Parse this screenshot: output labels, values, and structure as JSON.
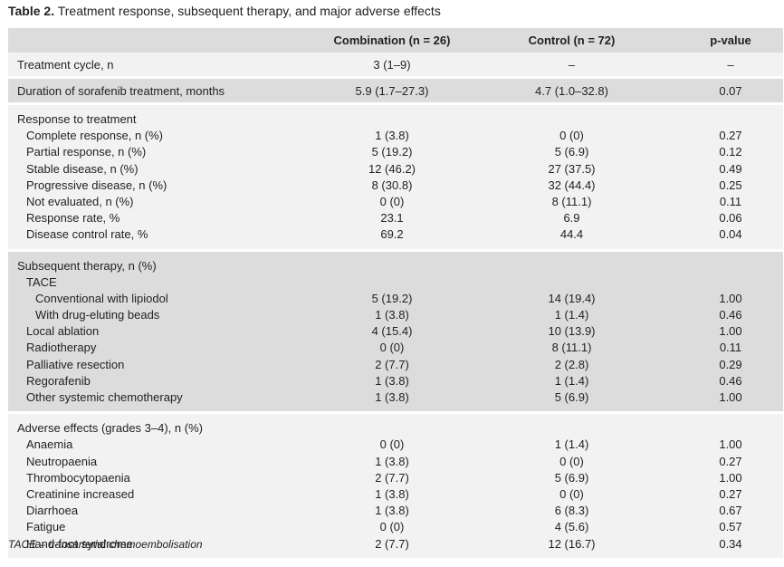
{
  "caption": {
    "label": "Table 2.",
    "text": " Treatment response, subsequent therapy, and major adverse effects"
  },
  "columns": {
    "combination": "Combination (n = 26)",
    "control": "Control (n = 72)",
    "pvalue": "p-value"
  },
  "rows_single": [
    {
      "label": "Treatment cycle, n",
      "combination": "3 (1–9)",
      "control": "–",
      "p": "–"
    },
    {
      "label": "Duration of sorafenib treatment, months",
      "combination": "5.9 (1.7–27.3)",
      "control": "4.7 (1.0–32.8)",
      "p": "0.07"
    }
  ],
  "response": {
    "header": "Response to treatment",
    "rows": [
      {
        "label": "Complete response, n (%)",
        "combination": "1 (3.8)",
        "control": "0 (0)",
        "p": "0.27"
      },
      {
        "label": "Partial response, n (%)",
        "combination": "5 (19.2)",
        "control": "5 (6.9)",
        "p": "0.12"
      },
      {
        "label": "Stable disease, n (%)",
        "combination": "12 (46.2)",
        "control": "27 (37.5)",
        "p": "0.49"
      },
      {
        "label": "Progressive disease, n (%)",
        "combination": "8 (30.8)",
        "control": "32 (44.4)",
        "p": "0.25"
      },
      {
        "label": "Not evaluated, n (%)",
        "combination": "0 (0)",
        "control": "8 (11.1)",
        "p": "0.11"
      },
      {
        "label": "Response rate, %",
        "combination": "23.1",
        "control": "6.9",
        "p": "0.06"
      },
      {
        "label": "Disease control rate, %",
        "combination": "69.2",
        "control": "44.4",
        "p": "0.04"
      }
    ]
  },
  "subsequent": {
    "header": "Subsequent therapy, n (%)",
    "tace": "TACE",
    "rows": [
      {
        "label": "Conventional with lipiodol",
        "combination": "5 (19.2)",
        "control": "14 (19.4)",
        "p": "1.00"
      },
      {
        "label": "With drug-eluting beads",
        "combination": "1 (3.8)",
        "control": "1 (1.4)",
        "p": "0.46"
      },
      {
        "label": "Local ablation",
        "combination": "4 (15.4)",
        "control": "10 (13.9)",
        "p": "1.00"
      },
      {
        "label": "Radiotherapy",
        "combination": "0 (0)",
        "control": "8 (11.1)",
        "p": "0.11"
      },
      {
        "label": "Palliative resection",
        "combination": "2 (7.7)",
        "control": "2 (2.8)",
        "p": "0.29"
      },
      {
        "label": "Regorafenib",
        "combination": "1 (3.8)",
        "control": "1 (1.4)",
        "p": "0.46"
      },
      {
        "label": "Other systemic chemotherapy",
        "combination": "1 (3.8)",
        "control": "5 (6.9)",
        "p": "1.00"
      }
    ]
  },
  "adverse": {
    "header": "Adverse effects (grades 3–4), n (%)",
    "rows": [
      {
        "label": "Anaemia",
        "combination": "0 (0)",
        "control": "1 (1.4)",
        "p": "1.00"
      },
      {
        "label": "Neutropaenia",
        "combination": "1 (3.8)",
        "control": "0 (0)",
        "p": "0.27"
      },
      {
        "label": "Thrombocytopaenia",
        "combination": "2 (7.7)",
        "control": "5 (6.9)",
        "p": "1.00"
      },
      {
        "label": "Creatinine increased",
        "combination": "1 (3.8)",
        "control": "0 (0)",
        "p": "0.27"
      },
      {
        "label": "Diarrhoea",
        "combination": "1 (3.8)",
        "control": "6 (8.3)",
        "p": "0.67"
      },
      {
        "label": "Fatigue",
        "combination": "0 (0)",
        "control": "4 (5.6)",
        "p": "0.57"
      },
      {
        "label": "Hand-foot syndrome",
        "combination": "2 (7.7)",
        "control": "12 (16.7)",
        "p": "0.34"
      }
    ]
  },
  "footnote": "TACE – transarterial chemoembolisation"
}
